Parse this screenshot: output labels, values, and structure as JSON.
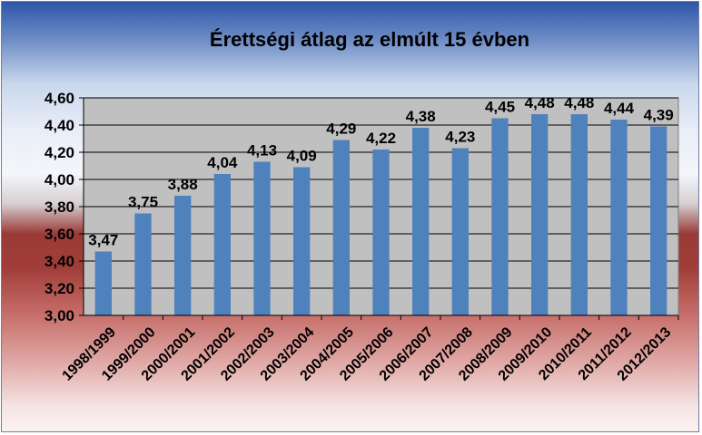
{
  "chart_data": {
    "type": "bar",
    "title": "Érettségi átlag az elmúlt 15 évben",
    "xlabel": "",
    "ylabel": "",
    "categories": [
      "1998/1999",
      "1999/2000",
      "2000/2001",
      "2001/2002",
      "2002/2003",
      "2003/2004",
      "2004/2005",
      "2005/2006",
      "2006/2007",
      "2007/2008",
      "2008/2009",
      "2009/2010",
      "2010/2011",
      "2011/2012",
      "2012/2013"
    ],
    "values": [
      3.47,
      3.75,
      3.88,
      4.04,
      4.13,
      4.09,
      4.29,
      4.22,
      4.38,
      4.23,
      4.45,
      4.48,
      4.48,
      4.44,
      4.39
    ],
    "data_labels": [
      "3,47",
      "3,75",
      "3,88",
      "4,04",
      "4,13",
      "4,09",
      "4,29",
      "4,22",
      "4,38",
      "4,23",
      "4,45",
      "4,48",
      "4,48",
      "4,44",
      "4,39"
    ],
    "ylim": [
      3.0,
      4.6
    ],
    "yticks": [
      3.0,
      3.2,
      3.4,
      3.6,
      3.8,
      4.0,
      4.2,
      4.4,
      4.6
    ],
    "ytick_labels": [
      "3,00",
      "3,20",
      "3,40",
      "3,60",
      "3,80",
      "4,00",
      "4,20",
      "4,40",
      "4,60"
    ],
    "grid": true,
    "legend": "none",
    "colors": {
      "bar": "#4f81bd",
      "plot_background": "#c0c0c0",
      "gridline": "#000000"
    }
  }
}
